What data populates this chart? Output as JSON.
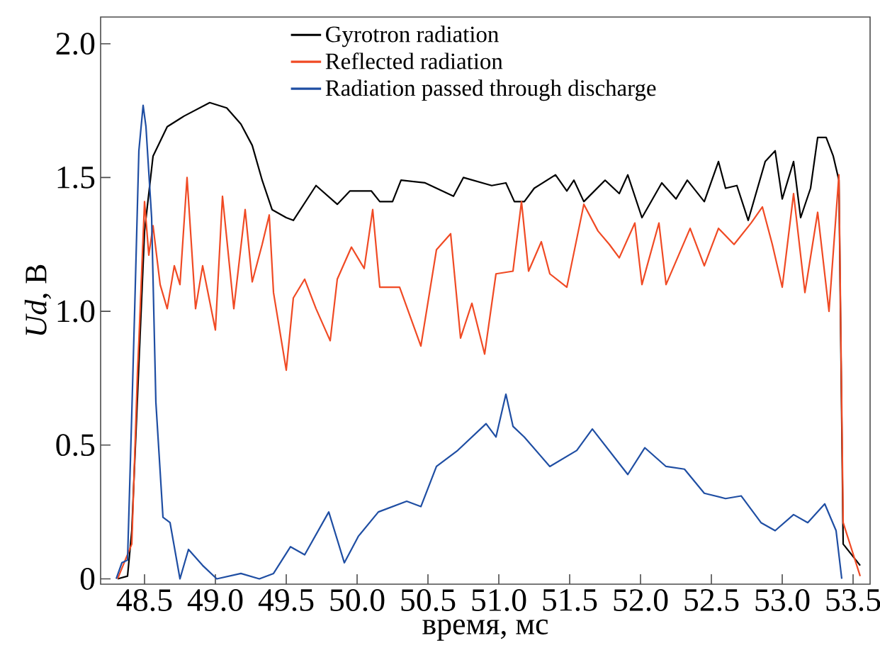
{
  "chart_data": {
    "type": "line",
    "xlabel": "время, мс",
    "ylabel": "*Ud*, В",
    "xlim": [
      48.19,
      53.62
    ],
    "ylim": [
      -0.02,
      2.1
    ],
    "xticks": [
      48.5,
      {
        "value": 49,
        "label": "49.0"
      },
      49.5,
      {
        "value": 50,
        "label": "50.0"
      },
      50.5,
      {
        "value": 51,
        "label": "51.0"
      },
      51.5,
      {
        "value": 52,
        "label": "52.0"
      },
      52.5,
      {
        "value": 53,
        "label": "53.0"
      },
      53.5
    ],
    "yticks": [
      0,
      0.5,
      {
        "value": 1,
        "label": "1.0"
      },
      1.5,
      {
        "value": 2,
        "label": "2.0"
      }
    ],
    "grid": false,
    "legend": "top",
    "marker": "none",
    "line_style": "solid",
    "series": [
      {
        "name": "Gyrotron radiation",
        "color": "#000000",
        "x": [
          48.31,
          48.38,
          48.41,
          48.45,
          48.5,
          48.56,
          48.66,
          48.78,
          48.96,
          49.08,
          49.18,
          49.26,
          49.33,
          49.4,
          49.5,
          49.55,
          49.71,
          49.86,
          49.95,
          50.1,
          50.16,
          50.25,
          50.31,
          50.48,
          50.68,
          50.75,
          50.95,
          51.05,
          51.11,
          51.18,
          51.25,
          51.4,
          51.48,
          51.53,
          51.6,
          51.75,
          51.85,
          51.91,
          52.01,
          52.15,
          52.25,
          52.33,
          52.45,
          52.55,
          52.6,
          52.68,
          52.76,
          52.88,
          52.95,
          53.0,
          53.08,
          53.13,
          53.2,
          53.25,
          53.31,
          53.36,
          53.4,
          53.43,
          53.55
        ],
        "values": [
          0.0,
          0.01,
          0.18,
          null,
          1.3,
          1.58,
          1.69,
          1.73,
          1.78,
          1.76,
          1.7,
          1.62,
          1.49,
          1.38,
          1.35,
          1.34,
          1.47,
          1.4,
          1.45,
          1.45,
          1.41,
          1.41,
          1.49,
          1.48,
          1.43,
          1.5,
          1.47,
          1.48,
          1.41,
          1.41,
          1.46,
          1.51,
          1.45,
          1.49,
          1.41,
          1.49,
          1.44,
          1.51,
          1.35,
          1.48,
          1.42,
          1.49,
          1.41,
          1.56,
          1.46,
          1.47,
          1.34,
          1.56,
          1.6,
          1.42,
          1.56,
          1.35,
          1.46,
          1.65,
          1.65,
          1.58,
          1.49,
          0.13,
          0.05
        ]
      },
      {
        "name": "Reflected radiation",
        "color": "#f04a24",
        "x": [
          48.31,
          48.41,
          48.45,
          48.46,
          48.5,
          48.53,
          48.56,
          48.61,
          48.66,
          48.71,
          48.75,
          48.8,
          48.86,
          48.91,
          49.0,
          49.05,
          49.13,
          49.21,
          49.26,
          49.33,
          49.38,
          49.41,
          49.5,
          49.55,
          49.63,
          49.71,
          49.81,
          49.86,
          49.96,
          50.05,
          50.11,
          50.16,
          50.3,
          50.45,
          50.56,
          50.66,
          50.73,
          50.81,
          50.9,
          50.98,
          51.1,
          51.16,
          51.21,
          51.3,
          51.36,
          51.48,
          51.6,
          51.7,
          51.78,
          51.85,
          51.96,
          52.01,
          52.13,
          52.18,
          52.35,
          52.45,
          52.55,
          52.66,
          52.78,
          52.86,
          52.93,
          53.0,
          53.08,
          53.16,
          53.25,
          53.33,
          53.4,
          53.43,
          53.55
        ],
        "values": [
          0.0,
          0.13,
          0.77,
          0.89,
          1.41,
          1.21,
          1.32,
          1.1,
          1.01,
          1.17,
          1.1,
          1.5,
          1.01,
          1.17,
          0.93,
          1.43,
          1.01,
          1.38,
          1.11,
          1.25,
          1.36,
          1.07,
          0.78,
          1.05,
          1.12,
          1.01,
          0.89,
          1.12,
          1.24,
          1.16,
          1.38,
          1.09,
          1.09,
          0.87,
          1.23,
          1.29,
          0.9,
          1.03,
          0.84,
          1.14,
          1.15,
          1.41,
          1.15,
          1.26,
          1.14,
          1.09,
          1.4,
          1.3,
          1.25,
          1.2,
          1.33,
          1.1,
          1.33,
          1.1,
          1.31,
          1.17,
          1.31,
          1.25,
          1.33,
          1.39,
          1.25,
          1.09,
          1.44,
          1.07,
          1.37,
          1.0,
          1.51,
          0.21,
          0.01
        ]
      },
      {
        "name": "Radiation passed through discharge",
        "color": "#1f4ea3",
        "x": [
          48.3,
          48.34,
          48.38,
          48.41,
          48.43,
          48.46,
          48.49,
          48.51,
          48.55,
          48.58,
          48.63,
          48.68,
          48.75,
          48.81,
          48.91,
          49.01,
          49.18,
          49.31,
          49.41,
          49.53,
          49.63,
          49.8,
          49.91,
          50.01,
          50.15,
          50.35,
          50.45,
          50.56,
          50.71,
          50.91,
          50.98,
          51.05,
          51.1,
          51.18,
          51.36,
          51.55,
          51.66,
          51.91,
          52.03,
          52.18,
          52.31,
          52.45,
          52.6,
          52.71,
          52.85,
          52.95,
          53.08,
          53.18,
          53.3,
          53.38,
          53.42
        ],
        "values": [
          0.0,
          0.06,
          0.07,
          0.62,
          1.0,
          1.6,
          1.77,
          1.69,
          1.35,
          0.66,
          0.23,
          0.21,
          0.0,
          0.11,
          0.05,
          0.0,
          0.02,
          0.0,
          0.02,
          0.12,
          0.09,
          0.25,
          0.06,
          0.16,
          0.25,
          0.29,
          0.27,
          0.42,
          0.48,
          0.58,
          0.53,
          0.69,
          0.57,
          0.53,
          0.42,
          0.48,
          0.56,
          0.39,
          0.49,
          0.42,
          0.41,
          0.32,
          0.3,
          0.31,
          0.21,
          0.18,
          0.24,
          0.21,
          0.28,
          0.18,
          0.0
        ]
      }
    ]
  }
}
